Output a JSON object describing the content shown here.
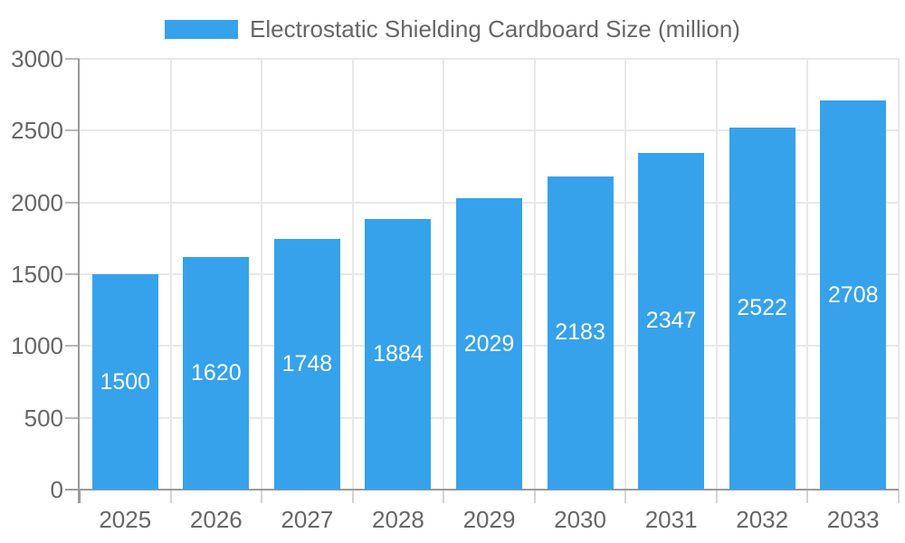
{
  "legend": {
    "label": "Electrostatic Shielding Cardboard Size (million)"
  },
  "colors": {
    "bar": "#36A2EB",
    "value_label": "#ffffff",
    "tick_text": "#666666",
    "gridline": "#e8e8e8",
    "axis_line": "#9a9a9a"
  },
  "chart_data": {
    "type": "bar",
    "title": "Electrostatic Shielding Cardboard Size (million)",
    "series_name": "Electrostatic Shielding Cardboard Size (million)",
    "categories": [
      "2025",
      "2026",
      "2027",
      "2028",
      "2029",
      "2030",
      "2031",
      "2032",
      "2033"
    ],
    "values": [
      1500,
      1620,
      1748,
      1884,
      2029,
      2183,
      2347,
      2522,
      2708
    ],
    "value_labels": [
      "1500",
      "1620",
      "1748",
      "1884",
      "2029",
      "2183",
      "2347",
      "2522",
      "2708"
    ],
    "xlabel": "",
    "ylabel": "",
    "ylim": [
      0,
      3000
    ],
    "yticks": [
      0,
      500,
      1000,
      1500,
      2000,
      2500,
      3000
    ],
    "grid": true,
    "legend_position": "top",
    "bar_color": "#36A2EB",
    "value_label_position": "center-inside"
  }
}
